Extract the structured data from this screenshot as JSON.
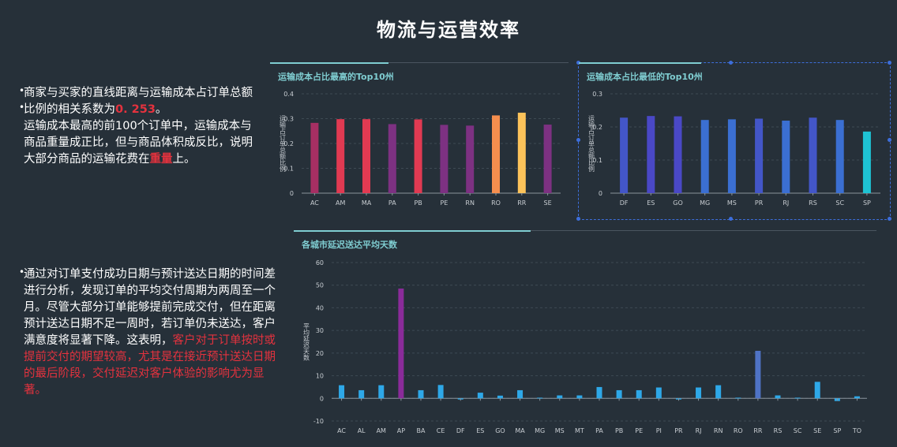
{
  "page_title": "物流与运营效率",
  "para1": {
    "line1_pre": "商家与买家的直线距离与运输成本占订单总额比例的相关系数为",
    "line1_value": "0. 253",
    "line1_post": "。",
    "line2_pre": "运输成本最高的前100个订单中，运输成本与商品重量成正比，但与商品体积成反比，说明大部分商品的运输花费在",
    "line2_highlight": "重量",
    "line2_post": "上。"
  },
  "para2": {
    "text_pre": "通过对订单支付成功日期与预计送达日期的时间差进行分析，发现订单的平均交付周期为两周至一个月。尽管大部分订单能够提前完成交付，但在距离预计送达日期不足一周时，若订单仍未送达，客户满意度将显著下降。这表明，",
    "text_highlight": "客户对于订单按时或提前交付的期望较高，尤其是在接近预计送达日期的最后阶段，交付延迟对客户体验的影响尤为显著。"
  },
  "chart_data": [
    {
      "type": "bar",
      "title": "运输成本占比最高的Top10州",
      "ylabel": "运输占订单总额比例",
      "ylim": [
        0,
        0.4
      ],
      "yticks": [
        0,
        0.1,
        0.2,
        0.3,
        0.4
      ],
      "categories": [
        "AC",
        "AM",
        "MA",
        "PA",
        "PB",
        "PE",
        "RN",
        "RO",
        "RR",
        "SE"
      ],
      "values": [
        0.283,
        0.298,
        0.298,
        0.278,
        0.297,
        0.275,
        0.272,
        0.313,
        0.324,
        0.276
      ],
      "colors": [
        "#a62f63",
        "#e13a52",
        "#e13a52",
        "#7d3182",
        "#e13a52",
        "#7d3182",
        "#7d3182",
        "#f58e4e",
        "#fcc35a",
        "#7d3182"
      ]
    },
    {
      "type": "bar",
      "title": "运输成本占比最低的Top10州",
      "ylabel": "运输占订单总额比例",
      "ylim": [
        0,
        0.3
      ],
      "yticks": [
        0,
        0.1,
        0.2,
        0.3
      ],
      "categories": [
        "DF",
        "ES",
        "GO",
        "MG",
        "MS",
        "PR",
        "RJ",
        "RS",
        "SC",
        "SP"
      ],
      "values": [
        0.228,
        0.233,
        0.232,
        0.221,
        0.223,
        0.225,
        0.219,
        0.228,
        0.221,
        0.186
      ],
      "colors": [
        "#4356c8",
        "#4a48c6",
        "#4a48c6",
        "#3b6fd2",
        "#3b6fd2",
        "#4356c8",
        "#3b6fd2",
        "#4356c8",
        "#3b6fd2",
        "#1ec3d4"
      ]
    },
    {
      "type": "bar",
      "title": "各城市延迟送达平均天数",
      "ylabel": "平均延迟天数",
      "ylim": [
        -10,
        60
      ],
      "yticks": [
        -10,
        0,
        10,
        20,
        30,
        40,
        50,
        60
      ],
      "categories": [
        "AC",
        "AL",
        "AM",
        "AP",
        "BA",
        "CE",
        "DF",
        "ES",
        "GO",
        "MA",
        "MG",
        "MS",
        "MT",
        "PA",
        "PB",
        "PE",
        "PI",
        "PR",
        "RJ",
        "RN",
        "RO",
        "RR",
        "RS",
        "SC",
        "SE",
        "SP",
        "TO"
      ],
      "values": [
        5.8,
        3.6,
        5.8,
        48.5,
        3.6,
        5.9,
        -0.5,
        2.5,
        1.2,
        3.6,
        0.3,
        1.3,
        1.3,
        5.0,
        3.6,
        3.6,
        4.8,
        -0.5,
        4.8,
        5.8,
        0.3,
        21.0,
        1.3,
        0.3,
        7.3,
        -1.2,
        0.9
      ],
      "colors": [
        "#2ea8e8",
        "#2ea8e8",
        "#2ea8e8",
        "#8a2b9a",
        "#2ea8e8",
        "#2ea8e8",
        "#2ea8e8",
        "#2ea8e8",
        "#2ea8e8",
        "#2ea8e8",
        "#2ea8e8",
        "#2ea8e8",
        "#2ea8e8",
        "#2ea8e8",
        "#2ea8e8",
        "#2ea8e8",
        "#2ea8e8",
        "#2ea8e8",
        "#2ea8e8",
        "#2ea8e8",
        "#2ea8e8",
        "#4f73c6",
        "#2ea8e8",
        "#2ea8e8",
        "#2ea8e8",
        "#2ea8e8",
        "#2ea8e8"
      ]
    }
  ]
}
